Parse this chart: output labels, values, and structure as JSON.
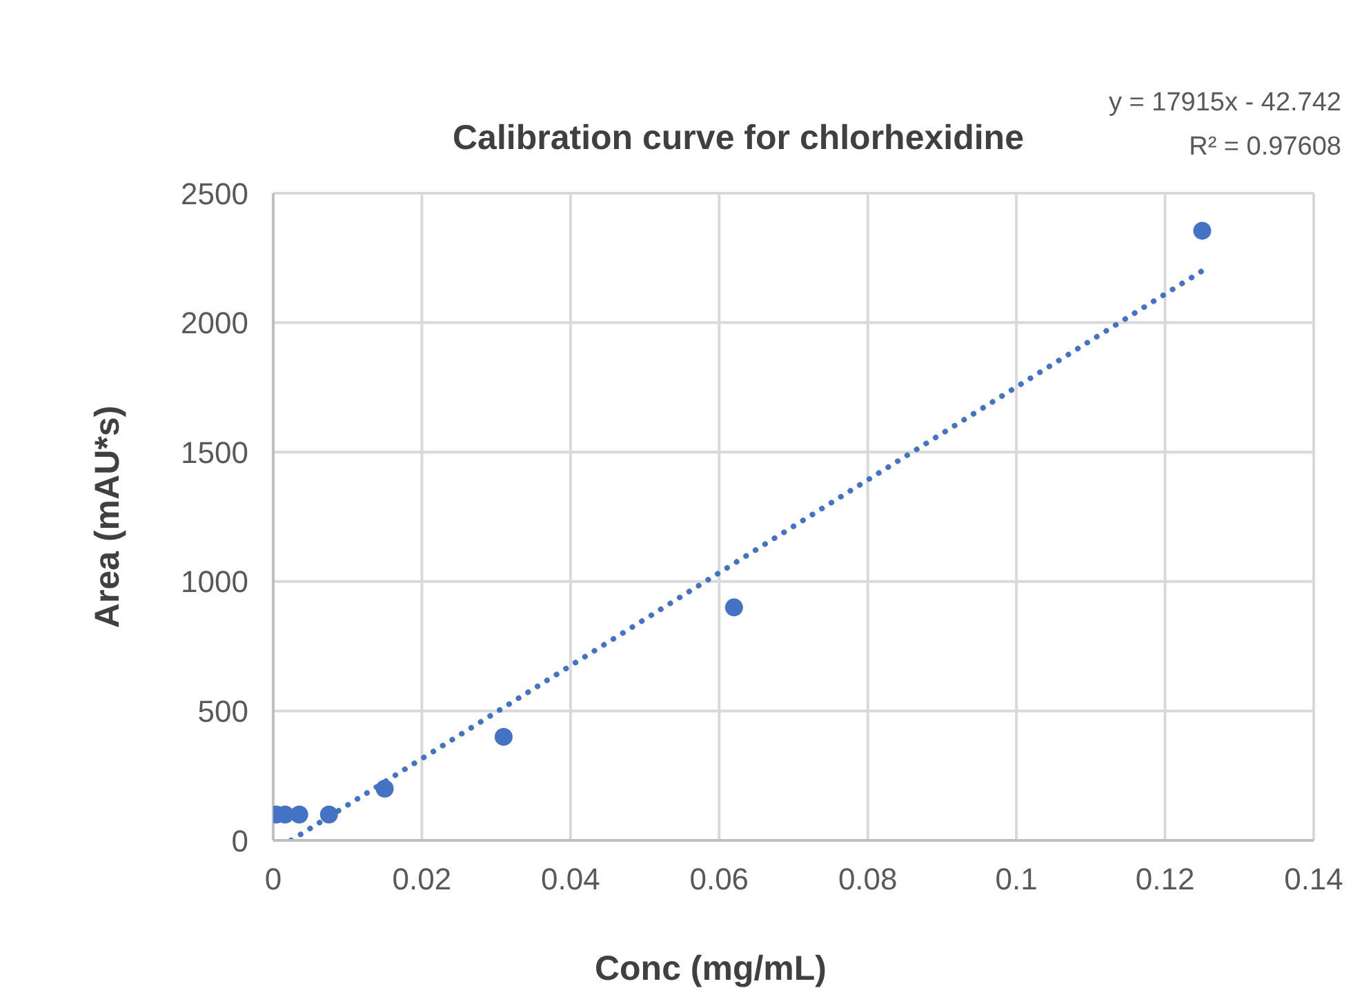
{
  "chart_data": {
    "type": "scatter",
    "title": "Calibration curve for chlorhexidine",
    "xlabel": "Conc (mg/mL)",
    "ylabel": "Area (mAU*s)",
    "annotations": [
      "y = 17915x - 42.742",
      "R² = 0.97608"
    ],
    "x": [
      0.0004,
      0.0016,
      0.0035,
      0.0075,
      0.015,
      0.031,
      0.062,
      0.125
    ],
    "series": [
      {
        "color": "#4472c4",
        "values": [
          100,
          100,
          100,
          100,
          200,
          400,
          900,
          2355
        ],
        "marker": "circle"
      },
      {
        "type": "line",
        "color": "#4472c4",
        "x": [
          0.0024,
          0.125
        ],
        "values": [
          0,
          2200
        ],
        "line_style": "dotted",
        "marker": "none"
      }
    ],
    "xlim": [
      0,
      0.14
    ],
    "xticks": [
      0,
      0.02,
      0.04,
      0.06,
      0.08,
      0.1,
      0.12,
      0.14
    ],
    "ylim": [
      0,
      2500
    ],
    "yticks": [
      0,
      500,
      1000,
      1500,
      2000,
      2500
    ],
    "grid": true,
    "legend": false
  }
}
